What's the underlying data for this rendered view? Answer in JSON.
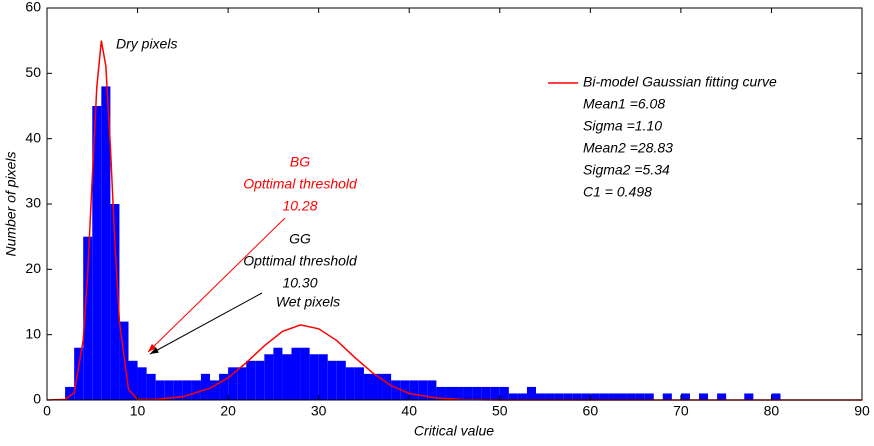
{
  "chart_data": {
    "type": "histogram",
    "xlabel": "Critical value",
    "ylabel": "Number of pixels",
    "xlim": [
      0,
      90
    ],
    "xticks": [
      0,
      10,
      20,
      30,
      40,
      50,
      60,
      70,
      80,
      90
    ],
    "ylim": [
      0,
      60
    ],
    "yticks": [
      0,
      10,
      20,
      30,
      40,
      50,
      60
    ],
    "color": "#0000ff",
    "bins": [
      2,
      3,
      4,
      5,
      6,
      7,
      8,
      9,
      10,
      11,
      12,
      13,
      14,
      15,
      16,
      17,
      18,
      19,
      20,
      21,
      22,
      23,
      24,
      25,
      26,
      27,
      28,
      29,
      30,
      31,
      32,
      33,
      34,
      35,
      36,
      37,
      38,
      39,
      40,
      41,
      42,
      43,
      44,
      45,
      46,
      47,
      48,
      49,
      50,
      51,
      52,
      53,
      54,
      55,
      56,
      57,
      58,
      59,
      60,
      61,
      62,
      63,
      64,
      65,
      66,
      67,
      68,
      69,
      70,
      71,
      72,
      73,
      74,
      75,
      76,
      77,
      78,
      79,
      80,
      81,
      82
    ],
    "counts": [
      2,
      8,
      25,
      45,
      48,
      30,
      12,
      6,
      5,
      4,
      3,
      3,
      3,
      3,
      3,
      4,
      3,
      4,
      5,
      5,
      6,
      6,
      7,
      8,
      7,
      8,
      8,
      7,
      7,
      6,
      6,
      5,
      5,
      4,
      4,
      4,
      3,
      3,
      3,
      3,
      3,
      2,
      2,
      2,
      2,
      2,
      2,
      2,
      2,
      1,
      1,
      2,
      1,
      1,
      1,
      1,
      1,
      1,
      1,
      1,
      1,
      1,
      1,
      1,
      1,
      0,
      1,
      0,
      1,
      0,
      1,
      0,
      1,
      0,
      0,
      1,
      0,
      0,
      1,
      0
    ],
    "series": [
      {
        "name": "Bi-model Gaussian fitting curve",
        "color": "#ff0000",
        "x": [
          0,
          2,
          3,
          4,
          4.5,
          5,
          5.5,
          6,
          6.5,
          7,
          7.5,
          8,
          9,
          10,
          12,
          15,
          18,
          20,
          22,
          24,
          26,
          28,
          30,
          32,
          34,
          36,
          38,
          40,
          43,
          46,
          50,
          55,
          60,
          70,
          80,
          90
        ],
        "values": [
          0,
          0.1,
          1.1,
          9.2,
          19.6,
          34.0,
          47.9,
          55,
          51.1,
          38.8,
          23.9,
          12.0,
          1.6,
          0.1,
          0.1,
          0.5,
          1.8,
          3.4,
          5.7,
          8.3,
          10.5,
          11.5,
          10.9,
          9.1,
          6.5,
          4.1,
          2.2,
          1.0,
          0.3,
          0.05,
          0,
          0,
          0,
          0,
          0,
          0
        ]
      }
    ],
    "stats": [
      "Mean1 =6.08",
      "Sigma =1.10",
      "Mean2 =28.83",
      "Sigma2 =5.34",
      "C1 = 0.498"
    ],
    "annotations": [
      {
        "lines": [
          "Dry pixels"
        ],
        "color": "#000000"
      },
      {
        "lines": [
          "BG",
          "Opttimal threshold",
          "10.28"
        ],
        "color": "#ff0000"
      },
      {
        "lines": [
          "GG",
          "Opttimal threshold",
          "10.30"
        ],
        "color": "#000000"
      },
      {
        "lines": [
          "Wet pixels"
        ],
        "color": "#000000"
      }
    ]
  }
}
